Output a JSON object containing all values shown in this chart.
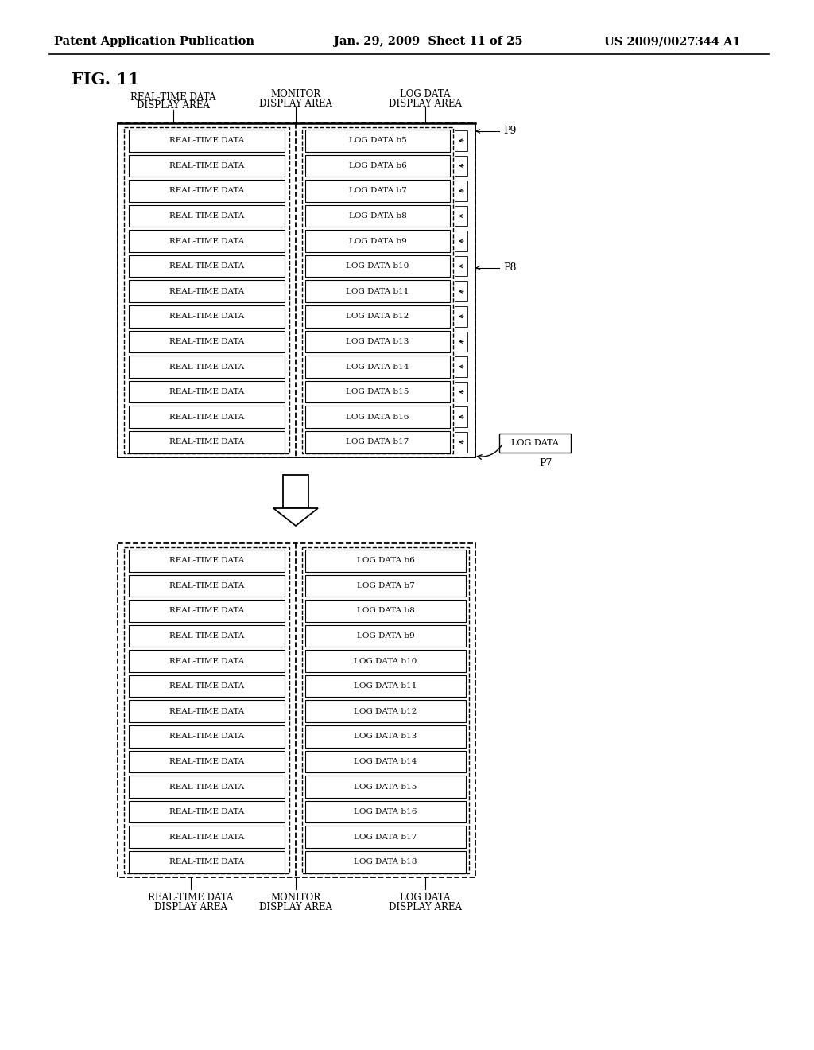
{
  "header_left": "Patent Application Publication",
  "header_center": "Jan. 29, 2009  Sheet 11 of 25",
  "header_right": "US 2009/0027344 A1",
  "fig_label": "FIG. 11",
  "bg_color": "#ffffff",
  "text_color": "#000000",
  "top_diagram": {
    "rt_col_label": [
      "REAL-TIME DATA",
      "DISPLAY AREA"
    ],
    "mon_col_label": [
      "MONITOR",
      "DISPLAY AREA"
    ],
    "log_col_label": [
      "LOG DATA",
      "DISPLAY AREA"
    ],
    "real_time_rows": [
      "REAL-TIME DATA",
      "REAL-TIME DATA",
      "REAL-TIME DATA",
      "REAL-TIME DATA",
      "REAL-TIME DATA",
      "REAL-TIME DATA",
      "REAL-TIME DATA",
      "REAL-TIME DATA",
      "REAL-TIME DATA",
      "REAL-TIME DATA",
      "REAL-TIME DATA",
      "REAL-TIME DATA",
      "REAL-TIME DATA"
    ],
    "log_rows": [
      "LOG DATA b5",
      "LOG DATA b6",
      "LOG DATA b7",
      "LOG DATA b8",
      "LOG DATA b9",
      "LOG DATA b10",
      "LOG DATA b11",
      "LOG DATA b12",
      "LOG DATA b13",
      "LOG DATA b14",
      "LOG DATA b15",
      "LOG DATA b16",
      "LOG DATA b17"
    ],
    "p9_label": "P9",
    "p8_label": "P8",
    "p7_label": "P7",
    "log_data_box_label": "LOG DATA"
  },
  "bottom_diagram": {
    "rt_col_label": [
      "REAL-TIME DATA",
      "DISPLAY AREA"
    ],
    "mon_col_label": [
      "MONITOR",
      "DISPLAY AREA"
    ],
    "log_col_label": [
      "LOG DATA",
      "DISPLAY AREA"
    ],
    "real_time_rows": [
      "REAL-TIME DATA",
      "REAL-TIME DATA",
      "REAL-TIME DATA",
      "REAL-TIME DATA",
      "REAL-TIME DATA",
      "REAL-TIME DATA",
      "REAL-TIME DATA",
      "REAL-TIME DATA",
      "REAL-TIME DATA",
      "REAL-TIME DATA",
      "REAL-TIME DATA",
      "REAL-TIME DATA",
      "REAL-TIME DATA"
    ],
    "log_rows": [
      "LOG DATA b6",
      "LOG DATA b7",
      "LOG DATA b8",
      "LOG DATA b9",
      "LOG DATA b10",
      "LOG DATA b11",
      "LOG DATA b12",
      "LOG DATA b13",
      "LOG DATA b14",
      "LOG DATA b15",
      "LOG DATA b16",
      "LOG DATA b17",
      "LOG DATA b18"
    ]
  }
}
